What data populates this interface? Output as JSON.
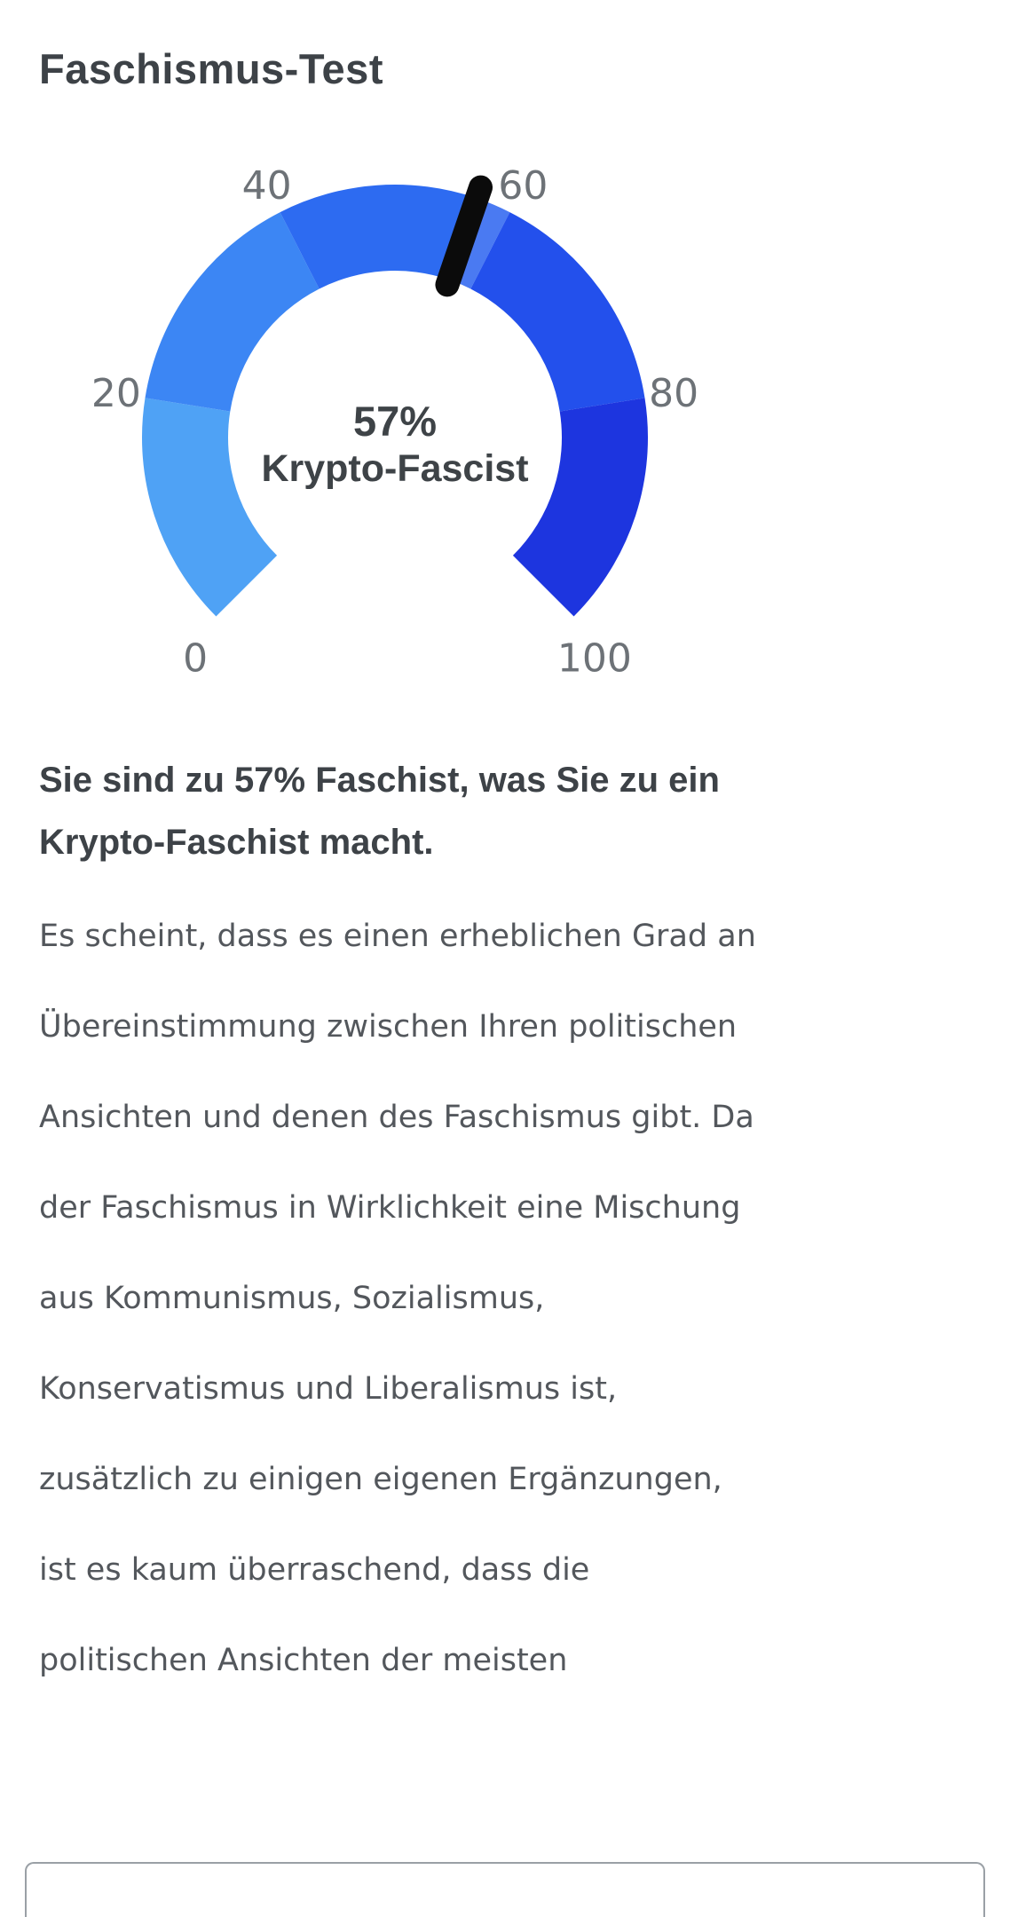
{
  "page": {
    "title": "Faschismus-Test"
  },
  "chart_data": {
    "type": "gauge",
    "title": "Faschismus-Test",
    "value": 57,
    "min": 0,
    "max": 100,
    "start_angle": 225,
    "end_angle": -45,
    "tick_labels": [
      "0",
      "20",
      "40",
      "60",
      "80",
      "100"
    ],
    "center_value_label": "57%",
    "center_text_label": "Krypto-Fascist",
    "segments": [
      {
        "from": 0,
        "to": 20,
        "color": "#4FA2F5"
      },
      {
        "from": 20,
        "to": 40,
        "color": "#3C86F4"
      },
      {
        "from": 40,
        "to": 57,
        "color": "#2D6BF1"
      },
      {
        "from": 57,
        "to": 60,
        "color": "#4A7AF2"
      },
      {
        "from": 60,
        "to": 80,
        "color": "#2350EC"
      },
      {
        "from": 80,
        "to": 100,
        "color": "#1D35DF"
      }
    ],
    "needle_color": "#0b0b0b",
    "tick_label_color": "#6d7277",
    "center_text_color": "#3e4347"
  },
  "result": {
    "heading": "Sie sind zu 57% Faschist, was Sie zu ein Krypto-Faschist macht.",
    "body_text": "Es scheint, dass es einen erheblichen Grad an Übereinstimmung zwischen Ihren politischen Ansichten und denen des Faschismus gibt. Da der Faschismus in Wirklichkeit eine Mischung aus Kommunismus, Sozialismus, Konservatismus und Liberalismus ist, zusätzlich zu einigen eigenen Ergänzungen, ist es kaum überraschend, dass die politischen Ansichten der meisten"
  }
}
